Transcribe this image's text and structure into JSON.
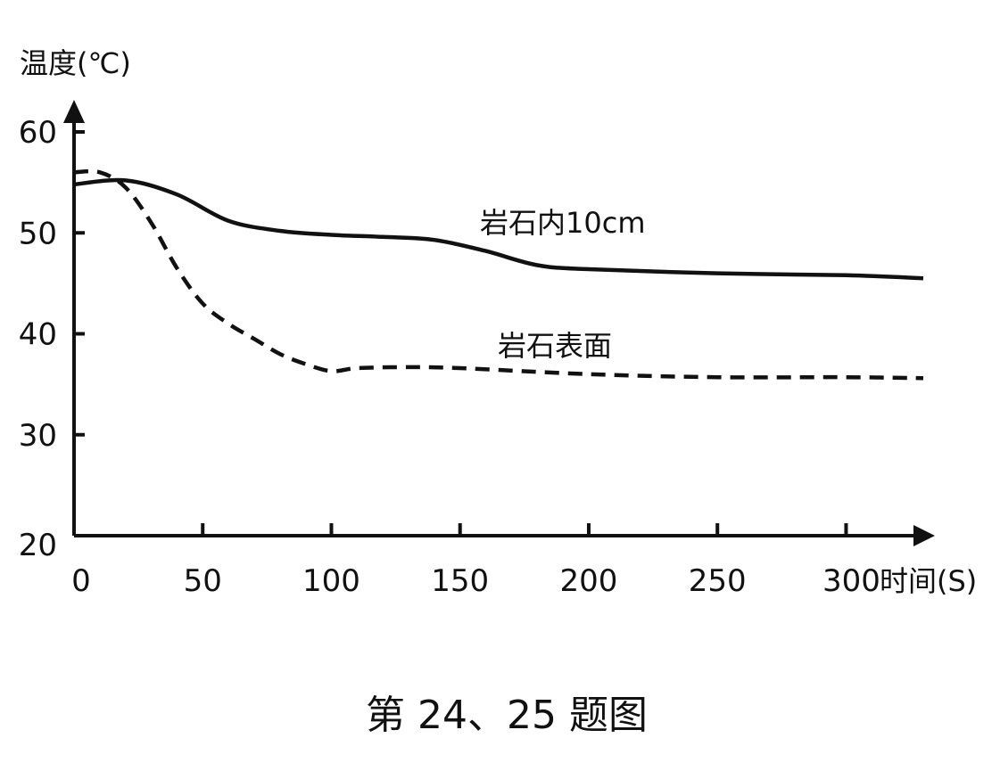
{
  "chart_data": {
    "type": "line",
    "title": "",
    "caption": "第 24、25 题图",
    "ylabel": "温度(℃)",
    "xlabel": "时间(S)",
    "xlim": [
      0,
      330
    ],
    "ylim": [
      20,
      60
    ],
    "xticks": [
      0,
      50,
      100,
      150,
      200,
      250,
      300
    ],
    "yticks": [
      20,
      30,
      40,
      50,
      60
    ],
    "grid": false,
    "series": [
      {
        "name": "岩石内10cm",
        "style": "solid",
        "color": "#111111",
        "x": [
          0,
          20,
          40,
          60,
          80,
          100,
          120,
          140,
          160,
          180,
          200,
          250,
          300,
          330
        ],
        "y": [
          54.8,
          55.2,
          53.8,
          51.2,
          50.2,
          49.8,
          49.6,
          49.3,
          48.2,
          46.8,
          46.4,
          46.0,
          45.8,
          45.5
        ]
      },
      {
        "name": "岩石表面",
        "style": "dashed",
        "color": "#111111",
        "x": [
          0,
          10,
          20,
          30,
          40,
          50,
          60,
          70,
          80,
          90,
          100,
          110,
          130,
          150,
          200,
          250,
          300,
          330
        ],
        "y": [
          56.0,
          56.0,
          54.5,
          51.0,
          46.5,
          43.0,
          41.0,
          39.5,
          38.0,
          37.0,
          36.3,
          36.6,
          36.7,
          36.6,
          36.0,
          35.7,
          35.7,
          35.6
        ]
      }
    ]
  }
}
